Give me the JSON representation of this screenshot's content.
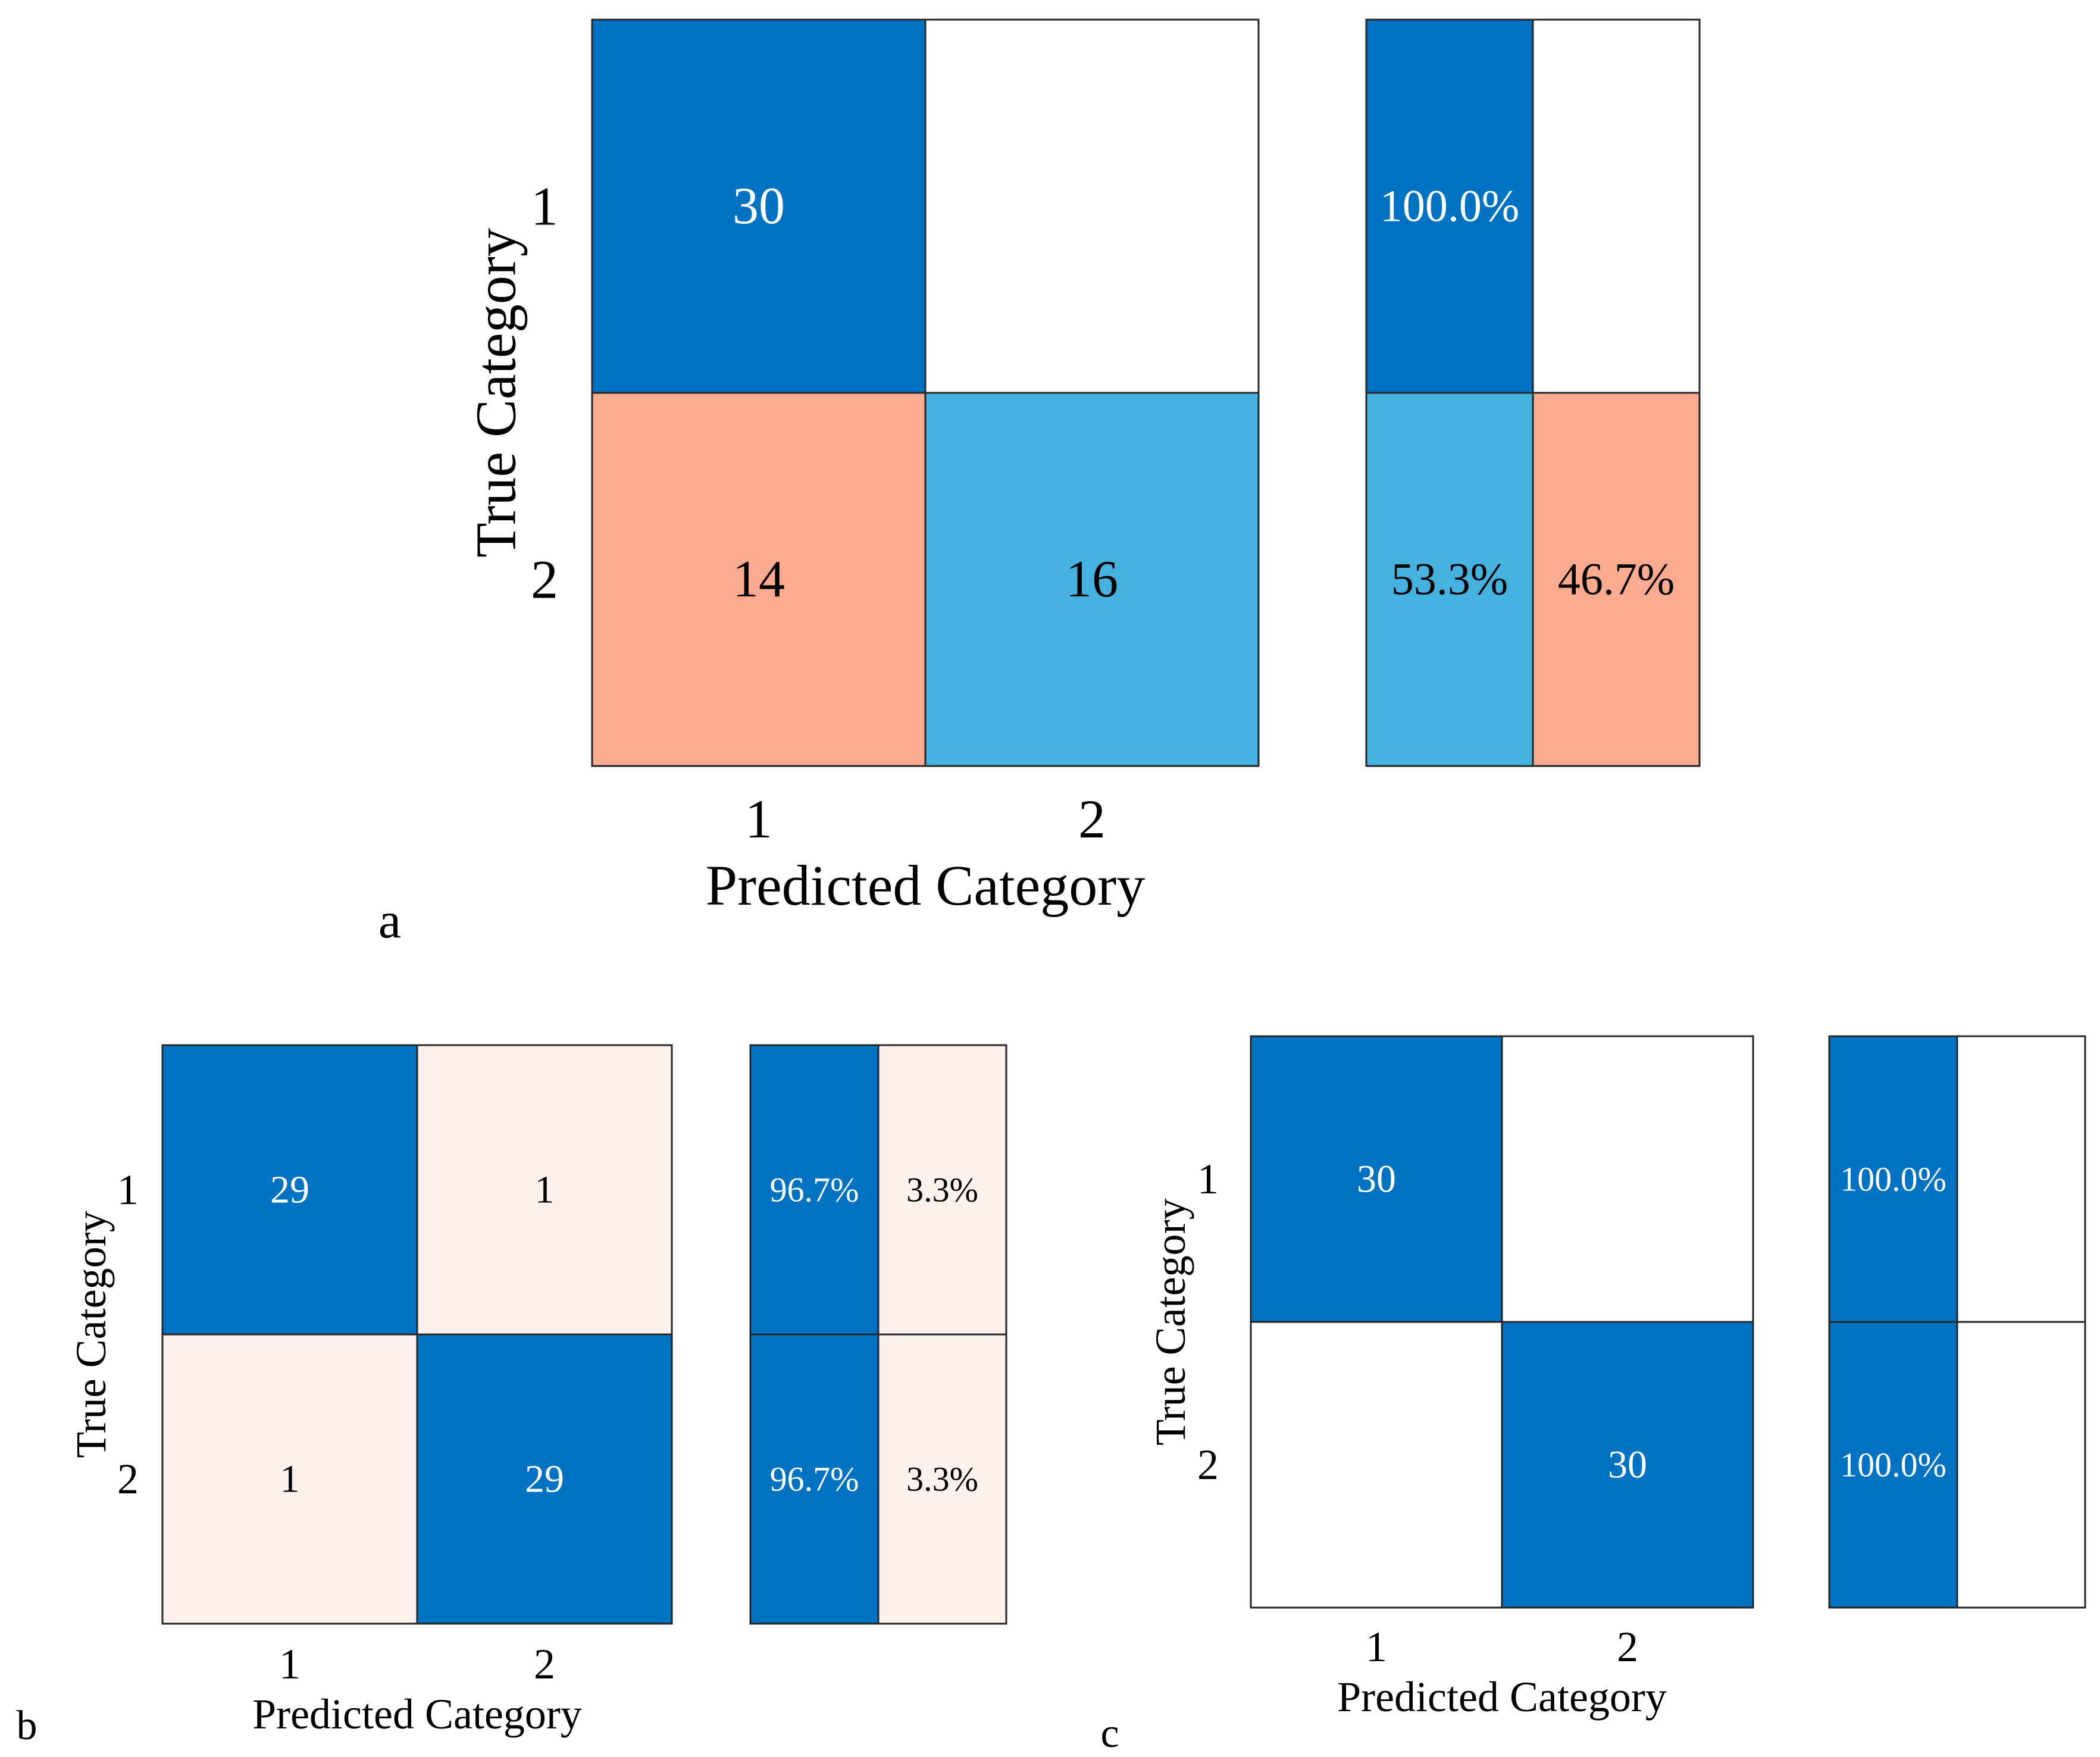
{
  "colors": {
    "correct": "#0072C2",
    "correct_light": "#44B1DF",
    "error_strong": "#F9AA8F",
    "error_light": "#FDF1EE",
    "empty": "#FFFFFF",
    "text_dark": "#000000",
    "text_light": "#FFFFFF",
    "border": "#262626"
  },
  "chart_data": [
    {
      "type": "heatmap",
      "panel_label": "a",
      "xlabel": "Predicted Category",
      "ylabel": "True Category",
      "x_ticks": [
        "1",
        "2"
      ],
      "y_ticks": [
        "1",
        "2"
      ],
      "matrix": [
        [
          30,
          0
        ],
        [
          14,
          16
        ]
      ],
      "cell_labels": [
        [
          "30",
          ""
        ],
        [
          "14",
          "16"
        ]
      ],
      "row_summary": [
        [
          100.0,
          0.0
        ],
        [
          53.3,
          46.7
        ]
      ],
      "row_summary_labels": [
        [
          "100.0%",
          ""
        ],
        [
          "53.3%",
          "46.7%"
        ]
      ]
    },
    {
      "type": "heatmap",
      "panel_label": "b",
      "xlabel": "Predicted Category",
      "ylabel": "True Category",
      "x_ticks": [
        "1",
        "2"
      ],
      "y_ticks": [
        "1",
        "2"
      ],
      "matrix": [
        [
          29,
          1
        ],
        [
          1,
          29
        ]
      ],
      "cell_labels": [
        [
          "29",
          "1"
        ],
        [
          "1",
          "29"
        ]
      ],
      "row_summary": [
        [
          96.7,
          3.3
        ],
        [
          96.7,
          3.3
        ]
      ],
      "row_summary_labels": [
        [
          "96.7%",
          "3.3%"
        ],
        [
          "96.7%",
          "3.3%"
        ]
      ]
    },
    {
      "type": "heatmap",
      "panel_label": "c",
      "xlabel": "Predicted Category",
      "ylabel": "True Category",
      "x_ticks": [
        "1",
        "2"
      ],
      "y_ticks": [
        "1",
        "2"
      ],
      "matrix": [
        [
          30,
          0
        ],
        [
          0,
          30
        ]
      ],
      "cell_labels": [
        [
          "30",
          ""
        ],
        [
          "",
          "30"
        ]
      ],
      "row_summary": [
        [
          100.0,
          0.0
        ],
        [
          100.0,
          0.0
        ]
      ],
      "row_summary_labels": [
        [
          "100.0%",
          ""
        ],
        [
          "100.0%",
          ""
        ]
      ]
    }
  ]
}
